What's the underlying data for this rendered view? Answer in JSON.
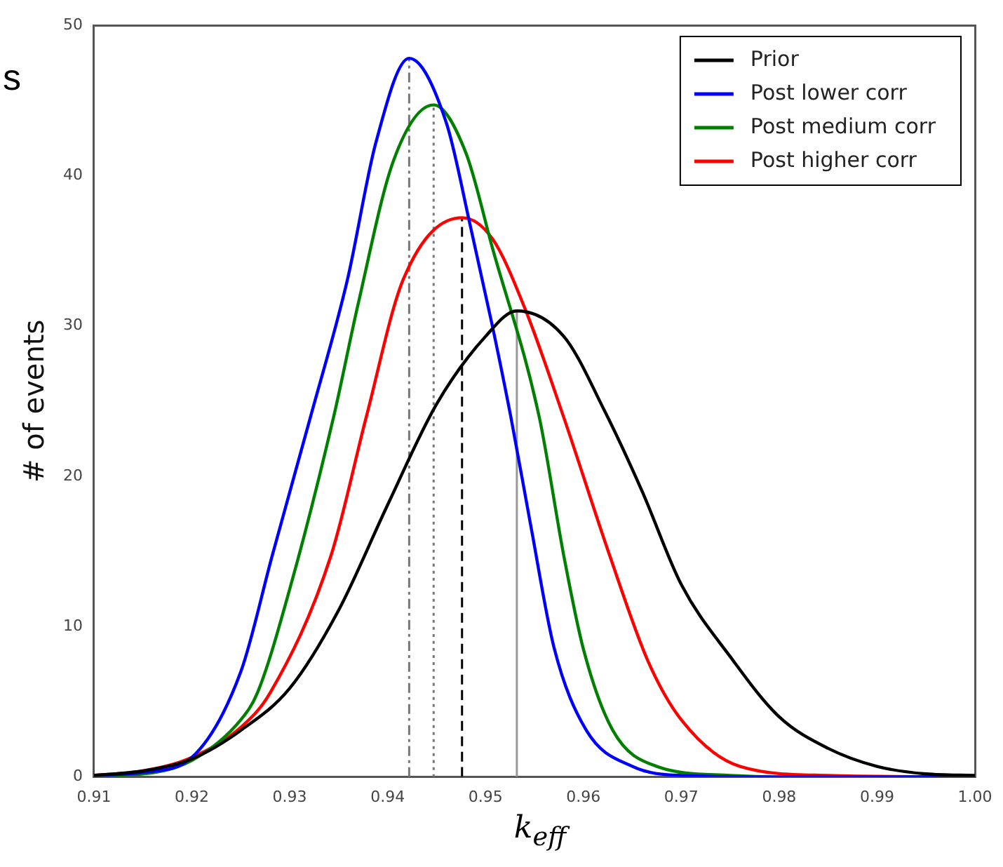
{
  "chart_data": {
    "type": "line",
    "xlabel": "k$_{eff}$",
    "ylabel": "# of events",
    "annotations": [
      "s"
    ],
    "xlim": [
      0.91,
      1.0
    ],
    "ylim": [
      0,
      50
    ],
    "xticks": [
      0.91,
      0.92,
      0.93,
      0.94,
      0.95,
      0.96,
      0.97,
      0.98,
      0.99,
      {
        "value": 1.0,
        "label": "1.00"
      }
    ],
    "yticks": [
      0,
      10,
      20,
      30,
      40,
      50
    ],
    "grid": false,
    "legend": "top right",
    "marker": "none",
    "line_style": "solid",
    "series": [
      {
        "name": "Prior",
        "color": "#000000",
        "x": [
          0.91,
          0.915,
          0.92,
          0.925,
          0.93,
          0.935,
          0.94,
          0.945,
          0.95,
          0.9532,
          0.958,
          0.9622,
          0.966,
          0.97,
          0.975,
          0.98,
          0.985,
          0.99,
          0.995,
          1.0
        ],
        "values": [
          0.1,
          0.4,
          1.2,
          3.1,
          5.9,
          11.1,
          18.1,
          24.8,
          29.3,
          31.0,
          29.3,
          24.3,
          19.0,
          12.8,
          8.0,
          4.0,
          1.9,
          0.7,
          0.2,
          0.1
        ]
      },
      {
        "name": "Post lower corr",
        "color": "#0000ff",
        "x": [
          0.91,
          0.915,
          0.92,
          0.925,
          0.9282,
          0.9321,
          0.9359,
          0.9388,
          0.9422,
          0.946,
          0.9485,
          0.9507,
          0.9526,
          0.9546,
          0.957,
          0.9603,
          0.965,
          0.97,
          0.98,
          1.0
        ],
        "values": [
          0.1,
          0.3,
          1.3,
          7.0,
          14.7,
          23.9,
          33.1,
          42.2,
          47.8,
          43.5,
          36.5,
          30.0,
          23.9,
          16.8,
          8.6,
          3.1,
          0.7,
          0.1,
          0,
          0
        ]
      },
      {
        "name": "Post medium corr",
        "color": "#008000",
        "x": [
          0.91,
          0.915,
          0.92,
          0.925,
          0.9267,
          0.93,
          0.9345,
          0.937,
          0.9406,
          0.9447,
          0.948,
          0.9507,
          0.9555,
          0.958,
          0.96,
          0.963,
          0.9675,
          0.975,
          0.98,
          1.0
        ],
        "values": [
          0.1,
          0.2,
          1.1,
          3.8,
          5.6,
          12.5,
          24.0,
          31.5,
          41.0,
          44.7,
          41.5,
          35.2,
          23.9,
          14.7,
          8.5,
          3.1,
          0.7,
          0.1,
          0,
          0
        ]
      },
      {
        "name": "Post higher corr",
        "color": "#ff0000",
        "x": [
          0.91,
          0.915,
          0.92,
          0.925,
          0.928,
          0.9342,
          0.9378,
          0.9416,
          0.9476,
          0.9507,
          0.954,
          0.958,
          0.9627,
          0.9666,
          0.97,
          0.976,
          0.985,
          1.0
        ],
        "values": [
          0.1,
          0.4,
          1.3,
          3.3,
          5.6,
          14.7,
          23.9,
          33.1,
          37.2,
          35.8,
          31.2,
          23.9,
          14.7,
          7.7,
          3.8,
          0.7,
          0.1,
          0
        ]
      },
      {
        "type": "line",
        "color": "#777777",
        "line_style": "dashdot",
        "x": [
          0.9422,
          0.9422
        ],
        "values": [
          0,
          47.8
        ]
      },
      {
        "type": "line",
        "color": "#777777",
        "line_style": "dotted",
        "x": [
          0.9447,
          0.9447
        ],
        "values": [
          0,
          44.7
        ]
      },
      {
        "type": "line",
        "color": "#000000",
        "line_style": "dashed",
        "x": [
          0.9476,
          0.9476
        ],
        "values": [
          0,
          37.2
        ]
      },
      {
        "type": "line",
        "color": "#999999",
        "line_style": "solid",
        "x": [
          0.9532,
          0.9532
        ],
        "values": [
          0,
          31.0
        ]
      }
    ]
  }
}
